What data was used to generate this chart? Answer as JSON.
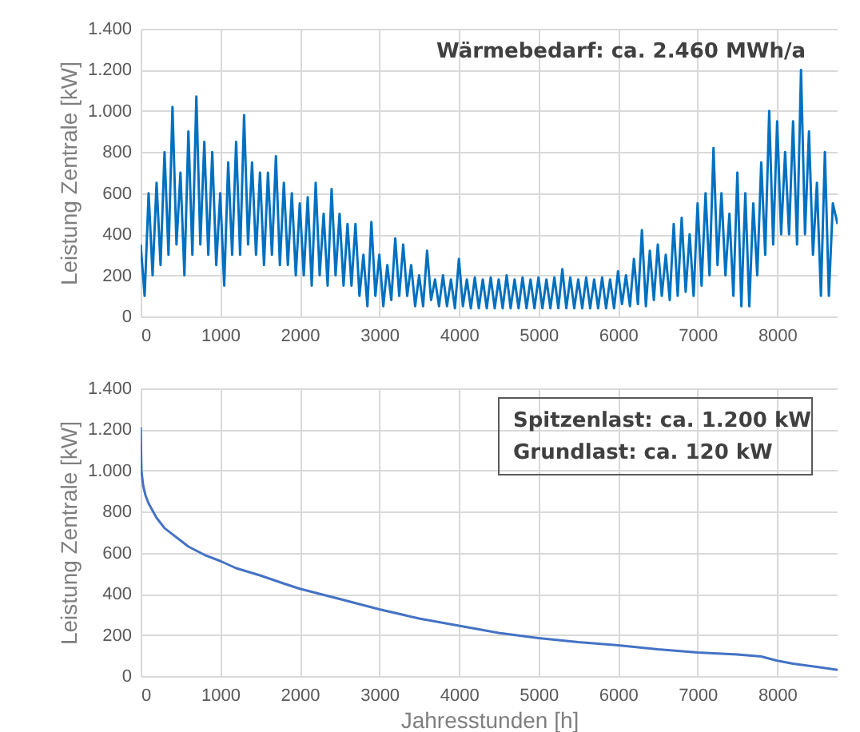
{
  "chart_data": [
    {
      "type": "line",
      "ylabel": "Leistung  Zentrale  [kW]",
      "annotations": [
        "Wärmebedarf: ca. 2.460 MWh/a"
      ],
      "grid": true,
      "series": [
        {
          "color": "#0070c0",
          "x": [
            0,
            50,
            100,
            150,
            200,
            250,
            300,
            350,
            400,
            450,
            500,
            550,
            600,
            650,
            700,
            750,
            800,
            850,
            900,
            950,
            1000,
            1050,
            1100,
            1150,
            1200,
            1250,
            1300,
            1350,
            1400,
            1450,
            1500,
            1550,
            1600,
            1650,
            1700,
            1750,
            1800,
            1850,
            1900,
            1950,
            2000,
            2050,
            2100,
            2150,
            2200,
            2250,
            2300,
            2350,
            2400,
            2450,
            2500,
            2550,
            2600,
            2650,
            2700,
            2750,
            2800,
            2850,
            2900,
            2950,
            3000,
            3050,
            3100,
            3150,
            3200,
            3250,
            3300,
            3350,
            3400,
            3450,
            3500,
            3550,
            3600,
            3650,
            3700,
            3750,
            3800,
            3850,
            3900,
            3950,
            4000,
            4050,
            4100,
            4150,
            4200,
            4250,
            4300,
            4350,
            4400,
            4450,
            4500,
            4550,
            4600,
            4650,
            4700,
            4750,
            4800,
            4850,
            4900,
            4950,
            5000,
            5050,
            5100,
            5150,
            5200,
            5250,
            5300,
            5350,
            5400,
            5450,
            5500,
            5550,
            5600,
            5650,
            5700,
            5750,
            5800,
            5850,
            5900,
            5950,
            6000,
            6050,
            6100,
            6150,
            6200,
            6250,
            6300,
            6350,
            6400,
            6450,
            6500,
            6550,
            6600,
            6650,
            6700,
            6750,
            6800,
            6850,
            6900,
            6950,
            7000,
            7050,
            7100,
            7150,
            7200,
            7250,
            7300,
            7350,
            7400,
            7450,
            7500,
            7550,
            7600,
            7650,
            7700,
            7750,
            7800,
            7850,
            7900,
            7950,
            8000,
            8050,
            8100,
            8150,
            8200,
            8250,
            8300,
            8350,
            8400,
            8450,
            8500,
            8550,
            8600,
            8650,
            8700,
            8760
          ],
          "values": [
            350,
            100,
            600,
            200,
            650,
            250,
            800,
            300,
            1020,
            350,
            700,
            200,
            900,
            300,
            1070,
            350,
            850,
            300,
            800,
            250,
            600,
            150,
            750,
            300,
            850,
            300,
            980,
            350,
            750,
            300,
            700,
            250,
            700,
            300,
            780,
            250,
            650,
            250,
            600,
            200,
            550,
            200,
            580,
            150,
            650,
            200,
            500,
            150,
            620,
            200,
            500,
            150,
            450,
            150,
            450,
            100,
            300,
            50,
            460,
            100,
            300,
            50,
            250,
            80,
            380,
            100,
            350,
            100,
            250,
            50,
            200,
            50,
            320,
            80,
            180,
            50,
            200,
            50,
            180,
            40,
            280,
            50,
            180,
            40,
            190,
            40,
            180,
            40,
            190,
            40,
            180,
            40,
            200,
            40,
            180,
            40,
            190,
            40,
            180,
            40,
            190,
            40,
            180,
            40,
            190,
            40,
            230,
            40,
            190,
            40,
            180,
            40,
            190,
            40,
            180,
            40,
            190,
            40,
            180,
            40,
            220,
            60,
            200,
            50,
            280,
            60,
            420,
            50,
            320,
            80,
            350,
            100,
            300,
            80,
            450,
            100,
            480,
            120,
            400,
            100,
            550,
            150,
            600,
            200,
            820,
            250,
            600,
            200,
            500,
            100,
            700,
            50,
            600,
            50,
            550,
            200,
            750,
            300,
            1000,
            350,
            950,
            400,
            800,
            400,
            950,
            350,
            1200,
            400,
            900,
            300,
            650,
            100,
            800,
            100,
            550,
            450
          ]
        }
      ],
      "xlim": [
        0,
        8760
      ],
      "xticks": [
        0,
        1000,
        2000,
        3000,
        4000,
        5000,
        6000,
        7000,
        8000
      ],
      "ylim": [
        0,
        1400
      ],
      "yticks": [
        0,
        200,
        400,
        600,
        800,
        {
          "value": 1000,
          "label": "1.000"
        },
        {
          "value": 1200,
          "label": "1.200"
        },
        {
          "value": 1400,
          "label": "1.400"
        }
      ]
    },
    {
      "type": "line",
      "xlabel": "Jahresstunden [h]",
      "ylabel": "Leistung  Zentrale  [kW]",
      "annotations": [
        "Spitzenlast: ca. 1.200 kW",
        "Grundlast:   ca. 120 kW"
      ],
      "grid": true,
      "series": [
        {
          "color": "#4472c4",
          "x": [
            0,
            10,
            30,
            60,
            100,
            200,
            300,
            400,
            500,
            600,
            800,
            1000,
            1200,
            1500,
            1800,
            2000,
            2500,
            3000,
            3500,
            4000,
            4500,
            5000,
            5500,
            6000,
            6500,
            7000,
            7500,
            7800,
            8000,
            8200,
            8500,
            8760
          ],
          "values": [
            1210,
            1000,
            930,
            880,
            840,
            770,
            720,
            690,
            660,
            630,
            590,
            560,
            525,
            490,
            450,
            425,
            375,
            325,
            280,
            245,
            210,
            185,
            165,
            150,
            130,
            115,
            105,
            95,
            75,
            60,
            45,
            30
          ]
        }
      ],
      "xlim": [
        0,
        8760
      ],
      "xticks": [
        0,
        1000,
        2000,
        3000,
        4000,
        5000,
        6000,
        7000,
        8000
      ],
      "ylim": [
        0,
        1400
      ],
      "yticks": [
        0,
        200,
        400,
        600,
        800,
        {
          "value": 1000,
          "label": "1.000"
        },
        {
          "value": 1200,
          "label": "1.200"
        },
        {
          "value": 1400,
          "label": "1.400"
        }
      ]
    }
  ]
}
